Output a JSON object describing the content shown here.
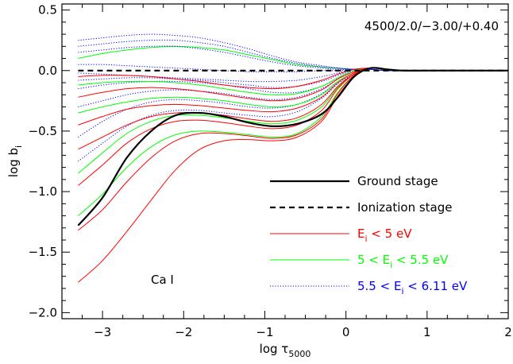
{
  "chart_data": {
    "type": "line",
    "title": "",
    "annotation": "4500/2.0/−3.00/+0.40",
    "species_label": "Ca I",
    "xlabel": {
      "text": "log τ",
      "sub": "5000"
    },
    "ylabel": {
      "text": "log b",
      "sub": "i"
    },
    "xlim": [
      -3.5,
      2.0
    ],
    "ylim": [
      -2.05,
      0.55
    ],
    "xticks": [
      -3,
      -2,
      -1,
      0,
      1,
      2
    ],
    "xtick_labels": [
      "−3",
      "−2",
      "−1",
      "0",
      "1",
      "2"
    ],
    "yticks": [
      0.5,
      0.0,
      -0.5,
      -1.0,
      -1.5,
      -2.0
    ],
    "ytick_labels": [
      "0.5",
      "0.0",
      "−0.5",
      "−1.0",
      "−1.5",
      "−2.0"
    ],
    "grid": false,
    "legend_position": "lower-right",
    "legend": [
      {
        "key": "ground",
        "text": "Ground stage",
        "sub": "",
        "style": "solid-thick",
        "color": "#000000"
      },
      {
        "key": "ion",
        "text": "Ionization stage",
        "sub": "",
        "style": "dashed-thick",
        "color": "#000000"
      },
      {
        "key": "red",
        "text": "E",
        "sub": "i",
        "rest": " < 5 eV",
        "style": "solid",
        "color": "#ff0000"
      },
      {
        "key": "green",
        "text": "5 < E",
        "sub": "i",
        "rest": " < 5.5 eV",
        "style": "solid",
        "color": "#00ff00"
      },
      {
        "key": "blue",
        "text": "5.5 < E",
        "sub": "i",
        "rest": " < 6.11 eV",
        "style": "dotted",
        "color": "#0000ff"
      }
    ],
    "x": [
      -3.3,
      -3.0,
      -2.7,
      -2.4,
      -2.1,
      -1.8,
      -1.5,
      -1.2,
      -0.9,
      -0.6,
      -0.3,
      -0.1,
      0.1,
      0.3,
      0.5,
      0.7,
      1.0,
      1.5,
      2.0
    ],
    "series": [
      {
        "group": "ground",
        "color": "#000000",
        "style": "solid-thick",
        "values": [
          -1.28,
          -1.05,
          -0.72,
          -0.5,
          -0.37,
          -0.35,
          -0.38,
          -0.43,
          -0.46,
          -0.44,
          -0.36,
          -0.22,
          -0.05,
          0.02,
          0.01,
          0.0,
          0.0,
          0.0,
          0.0
        ]
      },
      {
        "group": "ion",
        "color": "#000000",
        "style": "dashed-thick",
        "values": [
          0.0,
          0.0,
          0.0,
          0.0,
          0.0,
          0.0,
          0.0,
          0.0,
          0.0,
          0.0,
          0.0,
          0.0,
          0.0,
          0.0,
          0.0,
          0.0,
          0.0,
          0.0,
          0.0
        ]
      },
      {
        "group": "green",
        "color": "#00ff00",
        "style": "solid",
        "values": [
          0.1,
          0.14,
          0.17,
          0.19,
          0.2,
          0.19,
          0.17,
          0.13,
          0.09,
          0.05,
          0.03,
          0.02,
          0.01,
          0.01,
          0.0,
          0.0,
          0.0,
          0.0,
          0.0
        ]
      },
      {
        "group": "blue",
        "color": "#0000ff",
        "style": "dotted",
        "values": [
          0.25,
          0.27,
          0.29,
          0.3,
          0.29,
          0.27,
          0.23,
          0.18,
          0.12,
          0.07,
          0.04,
          0.02,
          0.01,
          0.01,
          0.0,
          0.0,
          0.0,
          0.0,
          0.0
        ]
      },
      {
        "group": "blue",
        "color": "#0000ff",
        "style": "dotted",
        "values": [
          0.2,
          0.22,
          0.24,
          0.25,
          0.25,
          0.23,
          0.2,
          0.15,
          0.1,
          0.06,
          0.03,
          0.02,
          0.01,
          0.01,
          0.0,
          0.0,
          0.0,
          0.0,
          0.0
        ]
      },
      {
        "group": "blue",
        "color": "#0000ff",
        "style": "dotted",
        "values": [
          0.15,
          0.17,
          0.19,
          0.2,
          0.2,
          0.18,
          0.15,
          0.11,
          0.07,
          0.04,
          0.02,
          0.01,
          0.01,
          0.01,
          0.0,
          0.0,
          0.0,
          0.0,
          0.0
        ]
      },
      {
        "group": "blue",
        "color": "#0000ff",
        "style": "dotted",
        "values": [
          0.05,
          0.05,
          0.04,
          0.03,
          0.02,
          0.01,
          0.0,
          -0.01,
          -0.01,
          -0.01,
          0.0,
          0.0,
          0.01,
          0.01,
          0.0,
          0.0,
          0.0,
          0.0,
          0.0
        ]
      },
      {
        "group": "blue",
        "color": "#0000ff",
        "style": "dotted",
        "values": [
          -0.02,
          -0.03,
          -0.04,
          -0.05,
          -0.06,
          -0.07,
          -0.08,
          -0.09,
          -0.09,
          -0.08,
          -0.05,
          -0.02,
          0.01,
          0.02,
          0.01,
          0.0,
          0.0,
          0.0,
          0.0
        ]
      },
      {
        "group": "blue",
        "color": "#0000ff",
        "style": "dotted",
        "values": [
          -0.08,
          -0.07,
          -0.06,
          -0.06,
          -0.07,
          -0.08,
          -0.1,
          -0.12,
          -0.14,
          -0.13,
          -0.09,
          -0.04,
          0.0,
          0.02,
          0.01,
          0.0,
          0.0,
          0.0,
          0.0
        ]
      },
      {
        "group": "blue",
        "color": "#0000ff",
        "style": "dotted",
        "values": [
          -0.15,
          -0.12,
          -0.1,
          -0.09,
          -0.09,
          -0.1,
          -0.12,
          -0.15,
          -0.18,
          -0.18,
          -0.13,
          -0.06,
          0.0,
          0.02,
          0.01,
          0.0,
          0.0,
          0.0,
          0.0
        ]
      },
      {
        "group": "blue",
        "color": "#0000ff",
        "style": "dotted",
        "values": [
          -0.3,
          -0.25,
          -0.2,
          -0.17,
          -0.16,
          -0.17,
          -0.19,
          -0.22,
          -0.24,
          -0.22,
          -0.15,
          -0.07,
          -0.01,
          0.02,
          0.01,
          0.0,
          0.0,
          0.0,
          0.0
        ]
      },
      {
        "group": "blue",
        "color": "#0000ff",
        "style": "dotted",
        "values": [
          -0.55,
          -0.42,
          -0.32,
          -0.26,
          -0.24,
          -0.25,
          -0.27,
          -0.3,
          -0.31,
          -0.28,
          -0.19,
          -0.09,
          -0.02,
          0.02,
          0.01,
          0.0,
          0.0,
          0.0,
          0.0
        ]
      },
      {
        "group": "blue",
        "color": "#0000ff",
        "style": "dotted",
        "values": [
          -0.75,
          -0.6,
          -0.46,
          -0.37,
          -0.33,
          -0.33,
          -0.35,
          -0.37,
          -0.38,
          -0.34,
          -0.23,
          -0.11,
          -0.03,
          0.02,
          0.01,
          0.0,
          0.0,
          0.0,
          0.0
        ]
      },
      {
        "group": "green",
        "color": "#00ff00",
        "style": "solid",
        "values": [
          -0.12,
          -0.1,
          -0.09,
          -0.09,
          -0.1,
          -0.12,
          -0.15,
          -0.18,
          -0.2,
          -0.19,
          -0.13,
          -0.06,
          0.0,
          0.02,
          0.01,
          0.0,
          0.0,
          0.0,
          0.0
        ]
      },
      {
        "group": "green",
        "color": "#00ff00",
        "style": "solid",
        "values": [
          -0.35,
          -0.3,
          -0.26,
          -0.23,
          -0.22,
          -0.23,
          -0.25,
          -0.28,
          -0.3,
          -0.28,
          -0.2,
          -0.09,
          -0.02,
          0.02,
          0.01,
          0.0,
          0.0,
          0.0,
          0.0
        ]
      },
      {
        "group": "green",
        "color": "#00ff00",
        "style": "solid",
        "values": [
          -0.85,
          -0.68,
          -0.52,
          -0.42,
          -0.37,
          -0.37,
          -0.39,
          -0.42,
          -0.44,
          -0.41,
          -0.3,
          -0.14,
          -0.03,
          0.02,
          0.01,
          0.0,
          0.0,
          0.0,
          0.0
        ]
      },
      {
        "group": "green",
        "color": "#00ff00",
        "style": "solid",
        "values": [
          -1.2,
          -1.02,
          -0.8,
          -0.63,
          -0.53,
          -0.5,
          -0.51,
          -0.53,
          -0.55,
          -0.52,
          -0.38,
          -0.18,
          -0.04,
          0.02,
          0.01,
          0.0,
          0.0,
          0.0,
          0.0
        ]
      },
      {
        "group": "red",
        "color": "#ff0000",
        "style": "solid",
        "values": [
          -0.05,
          -0.04,
          -0.04,
          -0.05,
          -0.07,
          -0.09,
          -0.12,
          -0.14,
          -0.15,
          -0.13,
          -0.08,
          -0.03,
          0.01,
          0.02,
          0.01,
          0.0,
          0.0,
          0.0,
          0.0
        ]
      },
      {
        "group": "red",
        "color": "#ff0000",
        "style": "solid",
        "values": [
          -0.22,
          -0.18,
          -0.15,
          -0.14,
          -0.15,
          -0.17,
          -0.2,
          -0.23,
          -0.25,
          -0.23,
          -0.16,
          -0.07,
          -0.01,
          0.02,
          0.01,
          0.0,
          0.0,
          0.0,
          0.0
        ]
      },
      {
        "group": "red",
        "color": "#ff0000",
        "style": "solid",
        "values": [
          -0.45,
          -0.38,
          -0.32,
          -0.29,
          -0.28,
          -0.29,
          -0.31,
          -0.33,
          -0.34,
          -0.31,
          -0.22,
          -0.1,
          -0.02,
          0.02,
          0.01,
          0.0,
          0.0,
          0.0,
          0.0
        ]
      },
      {
        "group": "red",
        "color": "#ff0000",
        "style": "solid",
        "values": [
          -0.65,
          -0.55,
          -0.45,
          -0.38,
          -0.35,
          -0.35,
          -0.37,
          -0.4,
          -0.42,
          -0.39,
          -0.28,
          -0.13,
          -0.03,
          0.02,
          0.01,
          0.0,
          0.0,
          0.0,
          0.0
        ]
      },
      {
        "group": "red",
        "color": "#ff0000",
        "style": "solid",
        "values": [
          -0.95,
          -0.78,
          -0.6,
          -0.48,
          -0.42,
          -0.41,
          -0.43,
          -0.46,
          -0.48,
          -0.45,
          -0.33,
          -0.15,
          -0.03,
          0.02,
          0.01,
          0.0,
          0.0,
          0.0,
          0.0
        ]
      },
      {
        "group": "red",
        "color": "#ff0000",
        "style": "solid",
        "values": [
          -1.32,
          -1.15,
          -0.92,
          -0.72,
          -0.58,
          -0.52,
          -0.52,
          -0.54,
          -0.56,
          -0.53,
          -0.4,
          -0.19,
          -0.04,
          0.02,
          0.01,
          0.0,
          0.0,
          0.0,
          0.0
        ]
      },
      {
        "group": "red",
        "color": "#ff0000",
        "style": "solid",
        "values": [
          -1.75,
          -1.57,
          -1.33,
          -1.07,
          -0.82,
          -0.65,
          -0.58,
          -0.57,
          -0.58,
          -0.55,
          -0.42,
          -0.21,
          -0.05,
          0.02,
          0.01,
          0.0,
          0.0,
          0.0,
          0.0
        ]
      }
    ]
  }
}
